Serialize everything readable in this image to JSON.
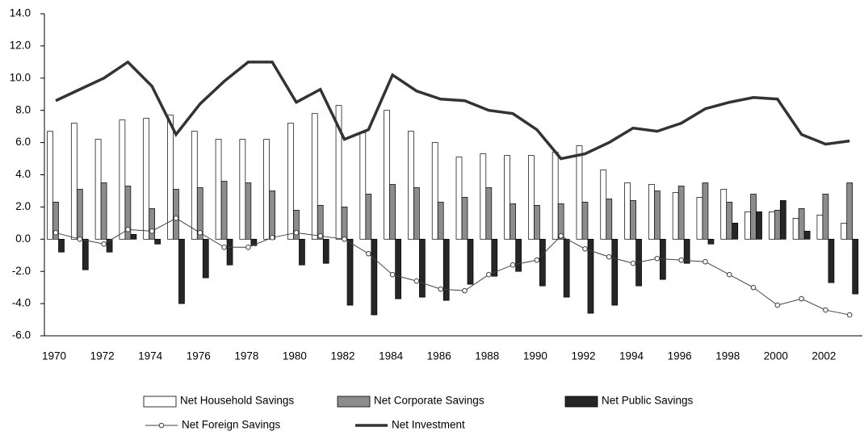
{
  "chart_data": {
    "type": "bar",
    "categories": [
      1970,
      null,
      1972,
      null,
      1974,
      null,
      1976,
      null,
      1978,
      null,
      1980,
      null,
      1982,
      null,
      1984,
      null,
      1986,
      null,
      1988,
      null,
      1990,
      null,
      1992,
      null,
      1994,
      null,
      1996,
      null,
      1998,
      null,
      2000,
      null,
      2002,
      null
    ],
    "ylim": [
      -6,
      14
    ],
    "yticks": [
      {
        "value": -6,
        "label": "-6.0"
      },
      {
        "value": -4,
        "label": "-4.0"
      },
      {
        "value": -2,
        "label": "-2.0"
      },
      {
        "value": 0,
        "label": "0.0"
      },
      {
        "value": 2,
        "label": "2.0"
      },
      {
        "value": 4,
        "label": "4.0"
      },
      {
        "value": 6,
        "label": "6.0"
      },
      {
        "value": 8,
        "label": "8.0"
      },
      {
        "value": 10,
        "label": "10.0"
      },
      {
        "value": 12,
        "label": "12.0"
      },
      {
        "value": 14,
        "label": "14.0"
      }
    ],
    "series": [
      {
        "name": "Net Household Savings",
        "type": "bar",
        "color": "#ffffff",
        "values": [
          6.7,
          7.2,
          6.2,
          7.4,
          7.5,
          7.7,
          6.7,
          6.2,
          6.2,
          6.2,
          7.2,
          7.8,
          8.3,
          6.6,
          8.0,
          6.7,
          6.0,
          5.1,
          5.3,
          5.2,
          5.2,
          5.4,
          5.8,
          4.3,
          3.5,
          3.4,
          2.9,
          2.6,
          3.1,
          1.7,
          1.7,
          1.3,
          1.5,
          1.0
        ]
      },
      {
        "name": "Net Corporate Savings",
        "type": "bar",
        "color": "#8c8c8c",
        "values": [
          2.3,
          3.1,
          3.5,
          3.3,
          1.9,
          3.1,
          3.2,
          3.6,
          3.5,
          3.0,
          1.8,
          2.1,
          2.0,
          2.8,
          3.4,
          3.2,
          2.3,
          2.6,
          3.2,
          2.2,
          2.1,
          2.2,
          2.3,
          2.5,
          2.4,
          3.0,
          3.3,
          3.5,
          2.3,
          2.8,
          1.8,
          1.9,
          2.8,
          3.5
        ]
      },
      {
        "name": "Net Public Savings",
        "type": "bar",
        "color": "#262626",
        "values": [
          -0.8,
          -1.9,
          -0.8,
          0.3,
          -0.3,
          -4.0,
          -2.4,
          -1.6,
          -0.4,
          0.0,
          -1.6,
          -1.5,
          -4.1,
          -4.7,
          -3.7,
          -3.6,
          -3.8,
          -2.8,
          -2.3,
          -2.0,
          -2.9,
          -3.6,
          -4.6,
          -4.1,
          -2.9,
          -2.5,
          -1.5,
          -0.3,
          1.0,
          1.7,
          2.4,
          0.5,
          -2.7,
          -3.4
        ]
      },
      {
        "name": "Net Foreign Savings",
        "type": "line",
        "color": "#404040",
        "marker": "circle",
        "values": [
          0.4,
          0.0,
          -0.3,
          0.6,
          0.5,
          1.3,
          0.4,
          -0.5,
          -0.5,
          0.1,
          0.4,
          0.2,
          0.0,
          -0.9,
          -2.2,
          -2.6,
          -3.1,
          -3.2,
          -2.2,
          -1.6,
          -1.3,
          0.2,
          -0.6,
          -1.1,
          -1.5,
          -1.2,
          -1.3,
          -1.4,
          -2.2,
          -3.0,
          -4.1,
          -3.7,
          -4.4,
          -4.7
        ]
      },
      {
        "name": "Net Investment",
        "type": "line",
        "color": "#333333",
        "values": [
          8.6,
          9.3,
          10.0,
          11.0,
          9.5,
          6.5,
          8.4,
          9.8,
          11.0,
          11.0,
          8.5,
          9.3,
          6.2,
          6.8,
          10.2,
          9.2,
          8.7,
          8.6,
          8.0,
          7.8,
          6.8,
          5.0,
          5.3,
          6.0,
          6.9,
          6.7,
          7.2,
          8.1,
          8.5,
          8.8,
          8.7,
          6.5,
          5.9,
          6.1
        ]
      }
    ]
  }
}
